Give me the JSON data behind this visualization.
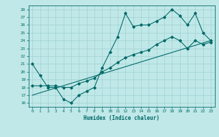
{
  "xlabel": "Humidex (Indice chaleur)",
  "bg_color": "#c0e8e8",
  "line_color": "#006868",
  "grid_color": "#a0d0d0",
  "xlim": [
    -0.5,
    23.5
  ],
  "ylim": [
    15.5,
    28.5
  ],
  "xticks": [
    0,
    1,
    2,
    3,
    4,
    5,
    6,
    7,
    8,
    9,
    10,
    11,
    12,
    13,
    14,
    15,
    16,
    17,
    18,
    19,
    20,
    21,
    22,
    23
  ],
  "yticks": [
    16,
    17,
    18,
    19,
    20,
    21,
    22,
    23,
    24,
    25,
    26,
    27,
    28
  ],
  "series1_x": [
    0,
    1,
    2,
    3,
    4,
    5,
    6,
    7,
    8,
    9,
    10,
    11,
    12,
    13,
    14,
    15,
    16,
    17,
    18,
    19,
    20,
    21,
    22,
    23
  ],
  "series1_y": [
    21.0,
    19.5,
    18.0,
    18.0,
    16.5,
    16.0,
    17.0,
    17.5,
    18.0,
    20.5,
    22.5,
    24.5,
    27.5,
    25.8,
    26.0,
    26.0,
    26.5,
    27.0,
    28.0,
    27.2,
    26.0,
    27.5,
    25.0,
    24.0
  ],
  "series2_x": [
    0,
    1,
    2,
    3,
    4,
    5,
    6,
    7,
    8,
    9,
    10,
    11,
    12,
    13,
    14,
    15,
    16,
    17,
    18,
    19,
    20,
    21,
    22,
    23
  ],
  "series2_y": [
    18.2,
    18.2,
    18.2,
    18.2,
    18.0,
    18.0,
    18.5,
    18.8,
    19.2,
    20.0,
    20.5,
    21.2,
    21.8,
    22.2,
    22.5,
    22.8,
    23.5,
    24.0,
    24.5,
    24.0,
    23.0,
    24.0,
    23.5,
    23.8
  ],
  "series3_x": [
    0,
    23
  ],
  "series3_y": [
    17.0,
    24.0
  ]
}
